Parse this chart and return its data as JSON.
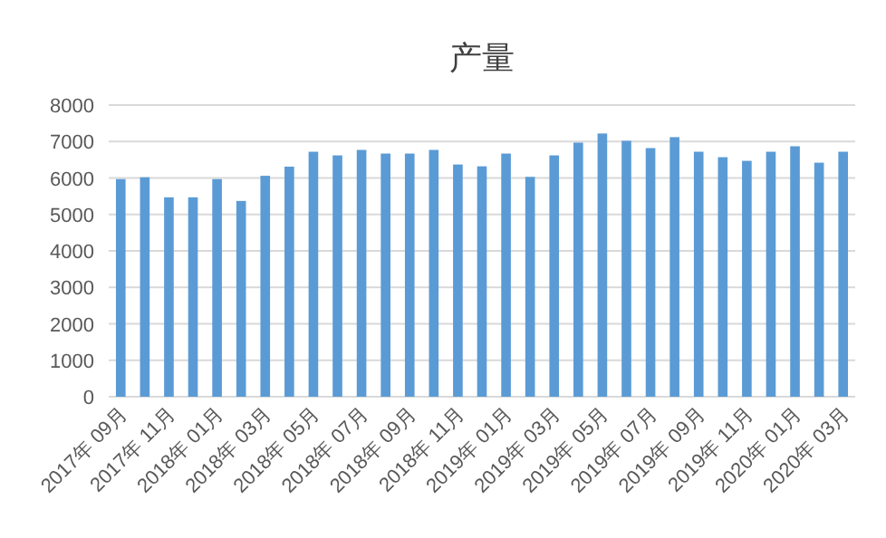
{
  "chart_data": {
    "type": "bar",
    "title": "产量",
    "categories": [
      "2017年 09月",
      null,
      "2017年 11月",
      null,
      "2018年 01月",
      null,
      "2018年 03月",
      null,
      "2018年 05月",
      null,
      "2018年 07月",
      null,
      "2018年 09月",
      null,
      "2018年 11月",
      null,
      "2019年 01月",
      null,
      "2019年 03月",
      null,
      "2019年 05月",
      null,
      "2019年 07月",
      null,
      "2019年 09月",
      null,
      "2019年 11月",
      null,
      "2020年 01月",
      null,
      "2020年 03月"
    ],
    "values": [
      5970,
      6020,
      5470,
      5470,
      5970,
      5370,
      6060,
      6310,
      6720,
      6620,
      6770,
      6670,
      6670,
      6770,
      6370,
      6320,
      6670,
      6030,
      6620,
      6970,
      7220,
      7020,
      6820,
      7120,
      6720,
      6570,
      6470,
      6720,
      6870,
      6420,
      6720
    ],
    "color": "#5b9bd5",
    "ylim": [
      0,
      8000
    ],
    "yticks": [
      0,
      1000,
      2000,
      3000,
      4000,
      5000,
      6000,
      7000,
      8000
    ],
    "grid": "y"
  }
}
